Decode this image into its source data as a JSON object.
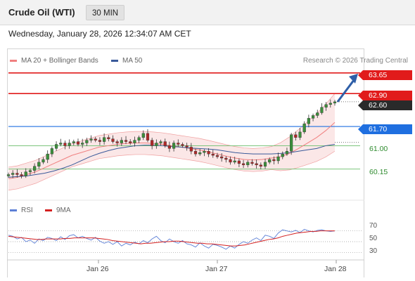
{
  "header": {
    "instrument": "Crude Oil (WTI)",
    "timeframe": "30 MIN",
    "datetime": "Wednesday, January 28, 2026 12:34:07 AM CET"
  },
  "legend": {
    "ma20_label": "MA 20 + Bollinger Bands",
    "ma50_label": "MA 50",
    "ma20_color": "#f08080",
    "ma50_color": "#3a5a9a",
    "copyright": "Research © 2026 Trading Central"
  },
  "rsi_legend": {
    "rsi_label": "RSI",
    "ma_label": "9MA",
    "rsi_color": "#5c7fd6",
    "ma_color": "#d42020"
  },
  "chart_data": [
    {
      "type": "candlestick",
      "title": "Crude Oil (WTI) 30 MIN",
      "ylim": [
        59.4,
        63.85
      ],
      "levels": [
        {
          "value": "63.65",
          "kind": "resistance",
          "color": "#e11b1b"
        },
        {
          "value": "62.90",
          "kind": "resistance",
          "color": "#e11b1b"
        },
        {
          "value": "62.60",
          "kind": "last price",
          "color": "#2a2a2a"
        },
        {
          "value": "61.70",
          "kind": "pivot",
          "color": "#1f6fe0"
        },
        {
          "value": "61.00",
          "kind": "support",
          "color": "#2e8b2e"
        },
        {
          "value": "60.15",
          "kind": "support",
          "color": "#2e8b2e"
        }
      ],
      "x_tick_labels": [
        "Jan 26",
        "Jan 27",
        "Jan 28"
      ],
      "grid": false,
      "projection": {
        "from": 62.6,
        "to": 63.65,
        "direction": "up"
      },
      "closes": [
        59.95,
        60.0,
        59.95,
        59.9,
        60.05,
        60.1,
        60.25,
        60.4,
        60.5,
        60.7,
        60.9,
        61.05,
        61.1,
        61.0,
        61.1,
        61.15,
        61.05,
        61.1,
        61.2,
        61.25,
        61.2,
        61.15,
        61.3,
        61.25,
        61.15,
        61.1,
        61.2,
        61.15,
        61.1,
        61.2,
        61.3,
        61.45,
        61.2,
        61.0,
        61.1,
        61.15,
        61.0,
        60.9,
        61.1,
        61.05,
        61.0,
        60.95,
        60.8,
        60.7,
        60.75,
        60.8,
        60.7,
        60.65,
        60.6,
        60.55,
        60.5,
        60.4,
        60.45,
        60.35,
        60.3,
        60.4,
        60.35,
        60.3,
        60.25,
        60.4,
        60.5,
        60.45,
        60.6,
        60.7,
        60.8,
        61.4,
        61.3,
        61.5,
        61.8,
        62.0,
        62.1,
        62.2,
        62.4,
        62.5,
        62.55,
        62.6
      ],
      "ma20": [
        59.8,
        59.85,
        59.95,
        60.05,
        60.2,
        60.35,
        60.5,
        60.65,
        60.75,
        60.85,
        60.95,
        61.0,
        61.05,
        61.08,
        61.1,
        61.1,
        61.08,
        61.05,
        61.0,
        60.95,
        60.9,
        60.85,
        60.78,
        60.7,
        60.62,
        60.55,
        60.5,
        60.48,
        60.5,
        60.55,
        60.6,
        60.72,
        60.9,
        61.1,
        61.3,
        61.55,
        61.85
      ],
      "ma50": [
        59.85,
        59.88,
        59.9,
        59.95,
        60.0,
        60.08,
        60.18,
        60.3,
        60.45,
        60.6,
        60.72,
        60.82,
        60.9,
        60.95,
        61.0,
        61.02,
        61.02,
        61.0,
        60.97,
        60.95,
        60.92,
        60.9,
        60.88,
        60.85,
        60.8,
        60.75,
        60.72,
        60.7,
        60.7,
        60.7,
        60.72,
        60.75,
        60.8,
        60.85,
        60.9,
        61.0,
        61.05
      ]
    },
    {
      "type": "line",
      "title": "RSI",
      "ylim": [
        20,
        80
      ],
      "y_tick_labels": [
        "70",
        "50",
        "30"
      ],
      "series": [
        {
          "name": "RSI",
          "values": [
            62,
            60,
            55,
            58,
            50,
            53,
            47,
            55,
            52,
            58,
            56,
            52,
            59,
            54,
            61,
            63,
            57,
            60,
            56,
            53,
            58,
            51,
            47,
            50,
            45,
            50,
            42,
            47,
            44,
            49,
            46,
            52,
            48,
            55,
            60,
            52,
            48,
            55,
            50,
            47,
            52,
            46,
            44,
            40,
            48,
            42,
            38,
            45,
            43,
            40,
            36,
            42,
            38,
            45,
            50,
            47,
            53,
            57,
            52,
            62,
            60,
            56,
            66,
            72,
            70,
            68,
            71,
            67,
            73,
            70,
            68,
            71,
            72,
            70,
            69,
            70
          ]
        },
        {
          "name": "9MA",
          "values": [
            60,
            59,
            58,
            57,
            56,
            55,
            54,
            54,
            55,
            55,
            55,
            55,
            56,
            56,
            57,
            57,
            57,
            57,
            57,
            56,
            55,
            54,
            52,
            51,
            50,
            49,
            48,
            47,
            46,
            47,
            47,
            48,
            49,
            50,
            50,
            51,
            51,
            50,
            49,
            48,
            47,
            47,
            46,
            46,
            45,
            44,
            43,
            42,
            42,
            43,
            44,
            46,
            48,
            50,
            52,
            54,
            55,
            57,
            60,
            62,
            64,
            66,
            67,
            68,
            69,
            69,
            70,
            70,
            70,
            70
          ]
        }
      ]
    }
  ]
}
